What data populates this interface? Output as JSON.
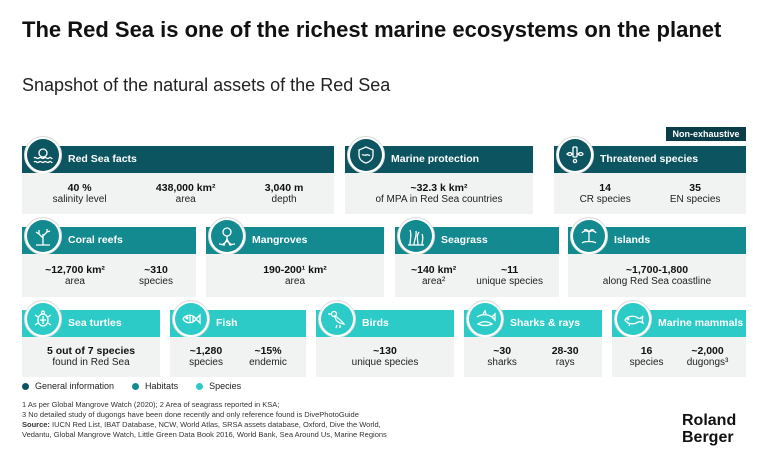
{
  "title": "The Red Sea is one of the richest marine ecosystems on the planet",
  "subtitle": "Snapshot of the natural assets of the Red Sea",
  "badge": "Non-exhaustive",
  "colors": {
    "general": "#0c5560",
    "habitats": "#138a90",
    "species": "#2ccbc7"
  },
  "cards": {
    "facts": {
      "title": "Red Sea facts",
      "icon": "waves-sun-icon",
      "stats": [
        {
          "value": "40 %",
          "label": "salinity level"
        },
        {
          "value": "438,000 km²",
          "label": "area"
        },
        {
          "value": "3,040 m",
          "label": "depth"
        }
      ]
    },
    "marine": {
      "title": "Marine protection",
      "icon": "shield-waves-icon",
      "stats": [
        {
          "value": "~32.3 k km²",
          "label": "of MPA in Red Sea countries"
        }
      ]
    },
    "threat": {
      "title": "Threatened species",
      "icon": "warning-fish-icon",
      "stats": [
        {
          "value": "14",
          "label": "CR species"
        },
        {
          "value": "35",
          "label": "EN species"
        }
      ]
    },
    "coral": {
      "title": "Coral reefs",
      "icon": "coral-icon",
      "stats": [
        {
          "value": "~12,700 km²",
          "label": "area"
        },
        {
          "value": "~310",
          "label": "species"
        }
      ]
    },
    "mangrove": {
      "title": "Mangroves",
      "icon": "mangrove-icon",
      "stats": [
        {
          "value": "190-200¹ km²",
          "label": "area"
        }
      ]
    },
    "seagrass": {
      "title": "Seagrass",
      "icon": "seagrass-icon",
      "stats": [
        {
          "value": "~140 km²",
          "label": "area²"
        },
        {
          "value": "~11",
          "label": "unique species"
        }
      ]
    },
    "islands": {
      "title": "Islands",
      "icon": "island-icon",
      "stats": [
        {
          "value": "~1,700-1,800",
          "label": "along Red Sea coastline"
        }
      ]
    },
    "turtles": {
      "title": "Sea turtles",
      "icon": "turtle-icon",
      "stats": [
        {
          "value": "5 out of 7 species",
          "label": "found in Red Sea"
        }
      ]
    },
    "fish": {
      "title": "Fish",
      "icon": "fish-icon",
      "stats": [
        {
          "value": "~1,280",
          "label": "species"
        },
        {
          "value": "~15%",
          "label": "endemic"
        }
      ]
    },
    "birds": {
      "title": "Birds",
      "icon": "bird-icon",
      "stats": [
        {
          "value": "~130",
          "label": "unique species"
        }
      ]
    },
    "sharks": {
      "title": "Sharks & rays",
      "icon": "shark-icon",
      "stats": [
        {
          "value": "~30",
          "label": "sharks"
        },
        {
          "value": "28-30",
          "label": "rays"
        }
      ]
    },
    "mammals": {
      "title": "Marine mammals",
      "icon": "dugong-icon",
      "stats": [
        {
          "value": "16",
          "label": "species"
        },
        {
          "value": "~2,000",
          "label": "dugongs³"
        }
      ]
    }
  },
  "legend": [
    "General information",
    "Habitats",
    "Species"
  ],
  "notes": {
    "line1": "1  As per Global Mangrove Watch (2020); 2  Area of seagrass reported in KSA;",
    "line2": "3  No detailed study of dugongs have been done recently and only reference found is DivePhotoGuide",
    "source_label": "Source:",
    "source_text": " IUCN Red List, IBAT Database, NCW, World Atlas, SRSA assets database, Oxford, Dive the World,",
    "line4": "Vedantu, Global Mangrove Watch, Little Green Data Book 2016, World Bank, Sea Around Us, Marine Regions"
  },
  "logo": {
    "line1": "Roland",
    "line2": "Berger"
  }
}
